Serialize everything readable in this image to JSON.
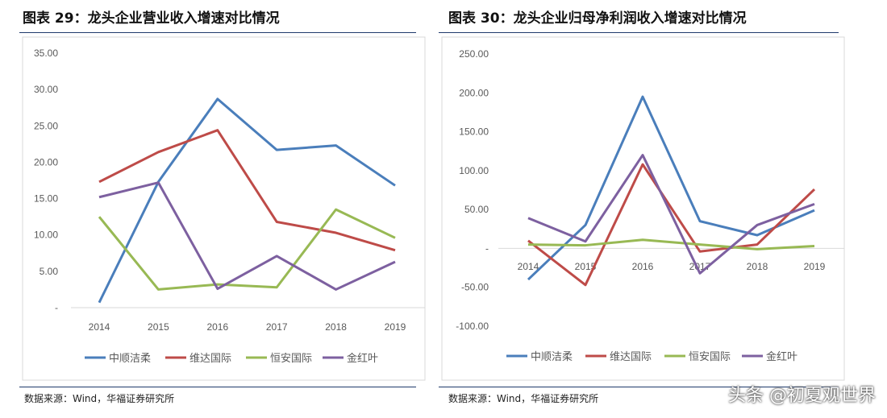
{
  "chart_data": [
    {
      "type": "line",
      "title": "图表 29：龙头企业营业收入增速对比情况",
      "categories": [
        "2014",
        "2015",
        "2016",
        "2017",
        "2018",
        "2019"
      ],
      "ylim": [
        0,
        35
      ],
      "yticks": [
        "-",
        "5.00",
        "10.00",
        "15.00",
        "20.00",
        "25.00",
        "30.00",
        "35.00"
      ],
      "legend": "bottom",
      "grid": false,
      "series": [
        {
          "name": "中顺洁柔",
          "color": "#4a7ebb",
          "values": [
            0.7,
            17.3,
            28.7,
            21.7,
            22.3,
            16.8
          ]
        },
        {
          "name": "维达国际",
          "color": "#be4b48",
          "values": [
            17.3,
            21.4,
            24.4,
            11.8,
            10.3,
            7.9
          ]
        },
        {
          "name": "恒安国际",
          "color": "#98b954",
          "values": [
            12.5,
            2.5,
            3.2,
            2.8,
            13.5,
            9.6
          ]
        },
        {
          "name": "金红叶",
          "color": "#7d60a0",
          "values": [
            15.2,
            17.2,
            2.6,
            7.1,
            2.5,
            6.3
          ]
        }
      ],
      "source": "数据来源：Wind，华福证券研究所"
    },
    {
      "type": "line",
      "title": "图表 30：龙头企业归母净利润收入增速对比情况",
      "categories": [
        "2014",
        "2015",
        "2016",
        "2017",
        "2018",
        "2019"
      ],
      "ylim": [
        -100,
        250
      ],
      "yticks": [
        "-100.00",
        "-50.00",
        "-",
        "50.00",
        "100.00",
        "150.00",
        "200.00",
        "250.00"
      ],
      "legend": "bottom",
      "grid": false,
      "series": [
        {
          "name": "中顺洁柔",
          "color": "#4a7ebb",
          "values": [
            -40,
            30,
            195,
            35,
            17,
            49
          ]
        },
        {
          "name": "维达国际",
          "color": "#be4b48",
          "values": [
            10,
            -47,
            108,
            -4,
            5,
            76
          ]
        },
        {
          "name": "恒安国际",
          "color": "#98b954",
          "values": [
            5,
            4,
            11,
            5,
            -1,
            3
          ]
        },
        {
          "name": "金红叶",
          "color": "#7d60a0",
          "values": [
            39,
            9,
            120,
            -32,
            30,
            57
          ]
        }
      ],
      "source": "数据来源：Wind，华福证券研究所"
    }
  ],
  "watermark": "头条 @初夏观世界"
}
